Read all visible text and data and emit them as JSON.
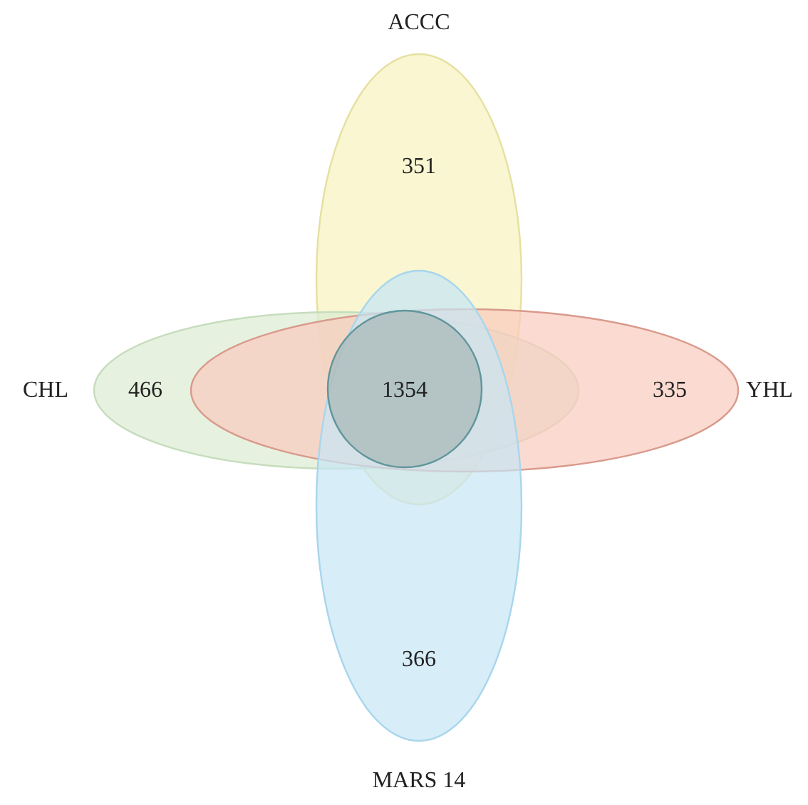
{
  "chart_data": {
    "type": "other",
    "categories": [
      "ACCC",
      "CHL",
      "YHL",
      "MARS 14"
    ],
    "values": [
      351,
      466,
      335,
      366
    ],
    "colors": [
      "#f6f2bd",
      "#dcecd2",
      "#f9cbbd",
      "#c6e6f5"
    ],
    "data_labels": true,
    "annotations": [
      "1354"
    ]
  }
}
